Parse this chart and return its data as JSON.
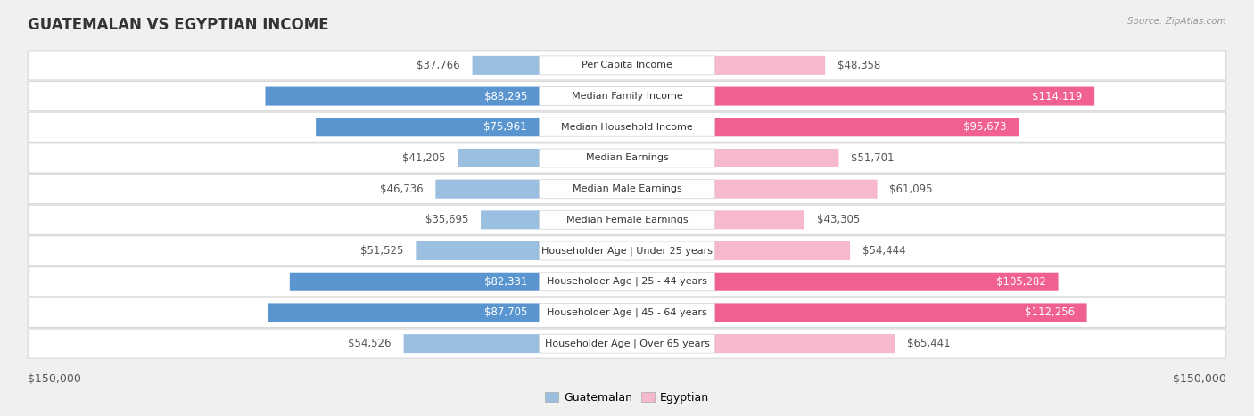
{
  "title": "GUATEMALAN VS EGYPTIAN INCOME",
  "source": "Source: ZipAtlas.com",
  "categories": [
    "Per Capita Income",
    "Median Family Income",
    "Median Household Income",
    "Median Earnings",
    "Median Male Earnings",
    "Median Female Earnings",
    "Householder Age | Under 25 years",
    "Householder Age | 25 - 44 years",
    "Householder Age | 45 - 64 years",
    "Householder Age | Over 65 years"
  ],
  "guatemalan_values": [
    37766,
    88295,
    75961,
    41205,
    46736,
    35695,
    51525,
    82331,
    87705,
    54526
  ],
  "egyptian_values": [
    48358,
    114119,
    95673,
    51701,
    61095,
    43305,
    54444,
    105282,
    112256,
    65441
  ],
  "guatemalan_labels": [
    "$37,766",
    "$88,295",
    "$75,961",
    "$41,205",
    "$46,736",
    "$35,695",
    "$51,525",
    "$82,331",
    "$87,705",
    "$54,526"
  ],
  "egyptian_labels": [
    "$48,358",
    "$114,119",
    "$95,673",
    "$51,701",
    "$61,095",
    "$43,305",
    "$54,444",
    "$105,282",
    "$112,256",
    "$65,441"
  ],
  "guatemalan_color_light": "#9bbfe0",
  "guatemalan_color_dark": "#5a95d0",
  "egyptian_color_light": "#f5b8cc",
  "egyptian_color_dark": "#f06090",
  "max_value": 150000,
  "axis_label_left": "$150,000",
  "axis_label_right": "$150,000",
  "legend_guatemalan": "Guatemalan",
  "legend_egyptian": "Egyptian",
  "bg_color": "#f0f0f0",
  "row_bg_color": "#ffffff",
  "row_outline_color": "#d8d8d8",
  "title_fontsize": 12,
  "label_fontsize": 8.5,
  "category_fontsize": 8,
  "axis_fontsize": 9,
  "guat_dark_threshold": 65000,
  "egypt_dark_threshold": 75000
}
